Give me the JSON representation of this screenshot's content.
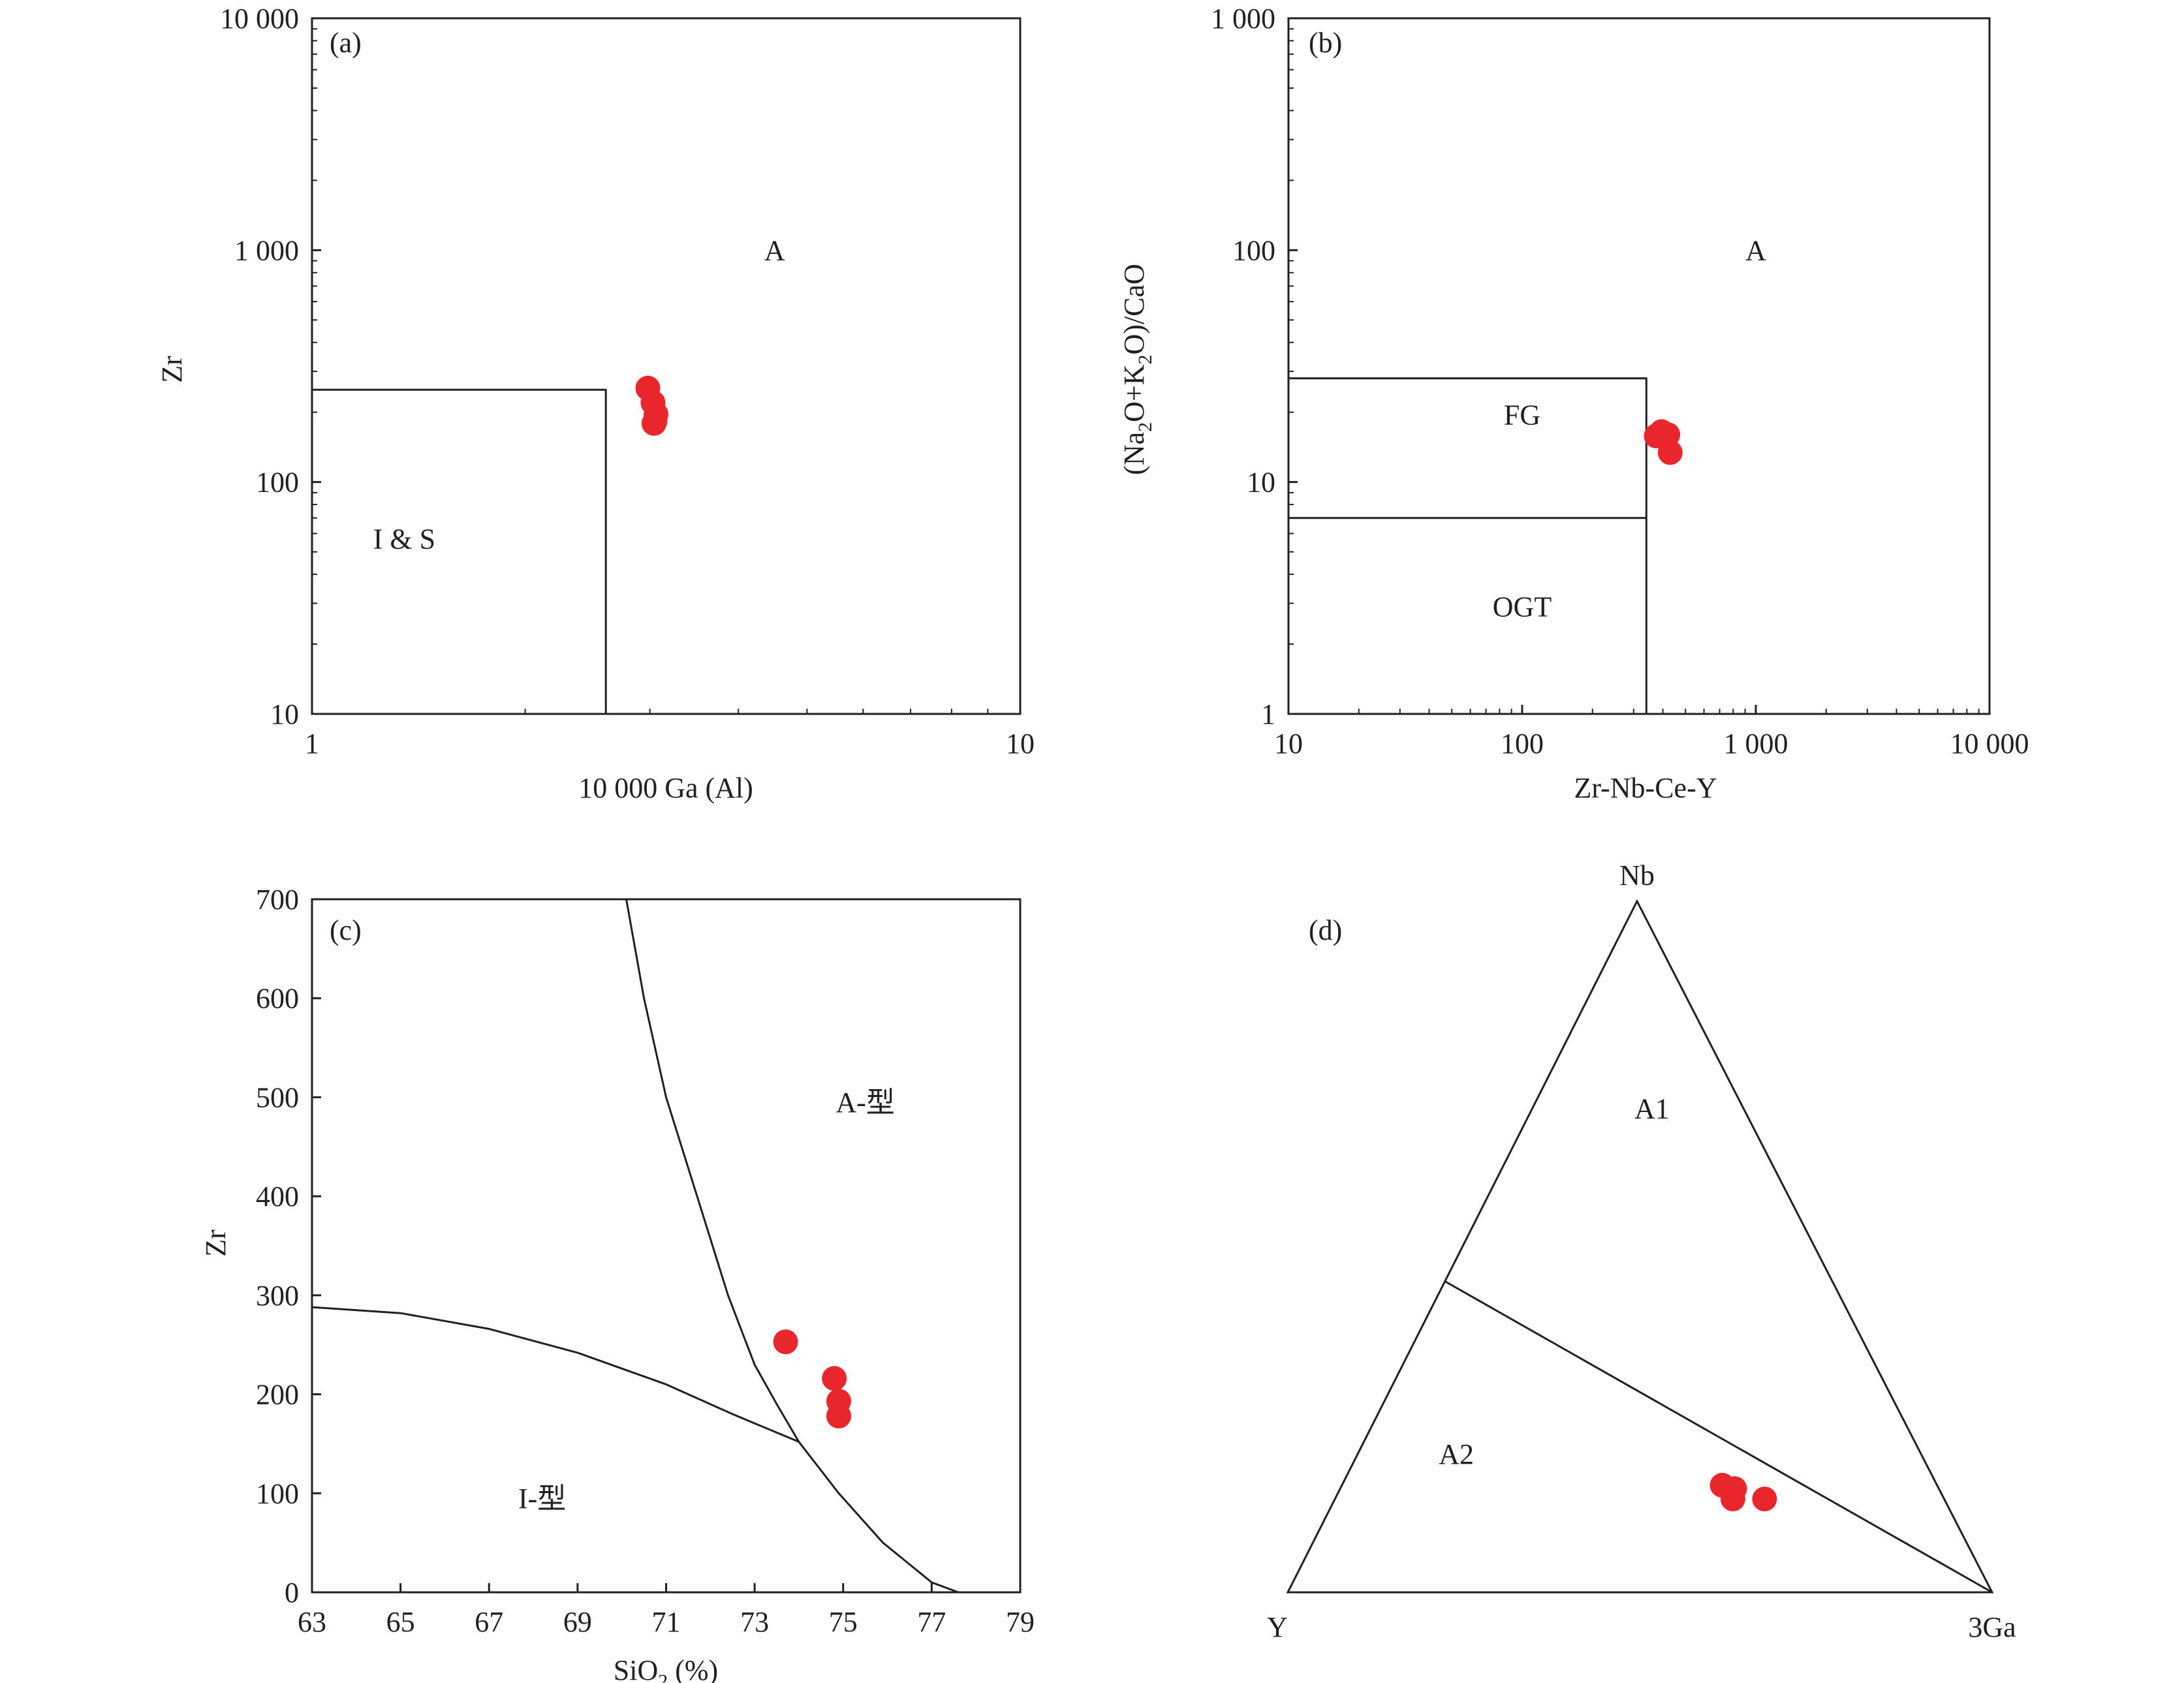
{
  "chart_data": [
    {
      "panel": "a",
      "type": "scatter",
      "panel_label": "(a)",
      "xlabel": "10 000 Ga (Al)",
      "ylabel": "Zr",
      "x_scale": "log",
      "y_scale": "log",
      "xlim": [
        1,
        10
      ],
      "ylim": [
        10,
        10000
      ],
      "x_ticks": [
        {
          "value": 1,
          "label": "1"
        },
        {
          "value": 10,
          "label": "10"
        }
      ],
      "y_ticks": [
        {
          "value": 10,
          "label": "10"
        },
        {
          "value": 100,
          "label": "100"
        },
        {
          "value": 1000,
          "label": "1 000"
        },
        {
          "value": 10000,
          "label": "10 000"
        }
      ],
      "field_labels": [
        {
          "text": "A",
          "x": 4.5,
          "y": 1000
        },
        {
          "text": "I & S",
          "x": 1.35,
          "y": 57
        }
      ],
      "boundaries": [
        [
          [
            1,
            250
          ],
          [
            2.6,
            250
          ],
          [
            2.6,
            10
          ]
        ]
      ],
      "points": [
        {
          "x": 2.98,
          "y": 254
        },
        {
          "x": 3.03,
          "y": 220
        },
        {
          "x": 3.06,
          "y": 196
        },
        {
          "x": 3.05,
          "y": 183
        },
        {
          "x": 3.04,
          "y": 179
        }
      ],
      "marker_color": "#e8262c"
    },
    {
      "panel": "b",
      "type": "scatter",
      "panel_label": "(b)",
      "xlabel": "Zr-Nb-Ce-Y",
      "ylabel_parts": [
        "(Na",
        "2",
        "O+K",
        "2",
        "O)/CaO"
      ],
      "x_scale": "log",
      "y_scale": "log",
      "xlim": [
        10,
        10000
      ],
      "ylim": [
        1,
        1000
      ],
      "x_ticks": [
        {
          "value": 10,
          "label": "10"
        },
        {
          "value": 100,
          "label": "100"
        },
        {
          "value": 1000,
          "label": "1 000"
        },
        {
          "value": 10000,
          "label": "10 000"
        }
      ],
      "y_ticks": [
        {
          "value": 1,
          "label": "1"
        },
        {
          "value": 10,
          "label": "10"
        },
        {
          "value": 100,
          "label": "100"
        },
        {
          "value": 1000,
          "label": "1 000"
        }
      ],
      "field_labels": [
        {
          "text": "A",
          "x": 1000,
          "y": 100
        },
        {
          "text": "FG",
          "x": 100,
          "y": 19.5
        },
        {
          "text": "OGT",
          "x": 100,
          "y": 2.9
        }
      ],
      "boundaries": [
        [
          [
            10,
            28
          ],
          [
            340,
            28
          ],
          [
            340,
            1
          ]
        ],
        [
          [
            10,
            7
          ],
          [
            340,
            7
          ]
        ]
      ],
      "points": [
        {
          "x": 375,
          "y": 15.8
        },
        {
          "x": 395,
          "y": 16.5
        },
        {
          "x": 420,
          "y": 16.0
        },
        {
          "x": 430,
          "y": 13.4
        }
      ],
      "marker_color": "#e8262c"
    },
    {
      "panel": "c",
      "type": "scatter",
      "panel_label": "(c)",
      "xlabel_parts": [
        "SiO",
        "2",
        " (%)"
      ],
      "ylabel": "Zr",
      "xlim": [
        63,
        79
      ],
      "ylim": [
        0,
        700
      ],
      "x_ticks": [
        63,
        65,
        67,
        69,
        71,
        73,
        75,
        77,
        79
      ],
      "y_ticks": [
        0,
        100,
        200,
        300,
        400,
        500,
        600,
        700
      ],
      "field_labels": [
        {
          "text": "A-型",
          "x": 75.5,
          "y": 495
        },
        {
          "text": "I-型",
          "x": 68.2,
          "y": 95
        }
      ],
      "boundaries": [
        [
          [
            70.1,
            700
          ],
          [
            70.5,
            600
          ],
          [
            71.0,
            500
          ],
          [
            71.7,
            400
          ],
          [
            72.4,
            300
          ],
          [
            73.0,
            230
          ],
          [
            73.5,
            190
          ],
          [
            74.0,
            152
          ],
          [
            74.9,
            100
          ],
          [
            75.9,
            50
          ],
          [
            77.0,
            10
          ],
          [
            77.6,
            0
          ]
        ],
        [
          [
            63.0,
            288
          ],
          [
            65.0,
            282
          ],
          [
            67.0,
            266
          ],
          [
            69.0,
            242
          ],
          [
            71.0,
            210
          ],
          [
            72.5,
            180
          ],
          [
            74.0,
            152
          ]
        ]
      ],
      "points": [
        {
          "x": 73.7,
          "y": 253
        },
        {
          "x": 74.8,
          "y": 216
        },
        {
          "x": 74.9,
          "y": 193
        },
        {
          "x": 74.9,
          "y": 178
        }
      ],
      "marker_color": "#e8262c"
    },
    {
      "panel": "d",
      "type": "ternary",
      "panel_label": "(d)",
      "apex_labels": {
        "top": "Nb",
        "left": "Y",
        "right": "3Ga"
      },
      "field_labels": [
        {
          "text": "A1",
          "composition": {
            "Nb": 0.7,
            "Y": 0.13,
            "3Ga": 0.17
          }
        },
        {
          "text": "A2",
          "composition": {
            "Nb": 0.2,
            "Y": 0.66,
            "3Ga": 0.14
          }
        }
      ],
      "divider_line": {
        "from": {
          "Nb": 0.45,
          "Y": 0.55,
          "3Ga": 0.0
        },
        "to": {
          "Nb": 0.0,
          "Y": 0.0,
          "3Ga": 1.0
        }
      },
      "points": [
        {
          "Nb": 0.155,
          "Y": 0.305,
          "3Ga": 0.54
        },
        {
          "Nb": 0.15,
          "Y": 0.29,
          "3Ga": 0.56
        },
        {
          "Nb": 0.135,
          "Y": 0.3,
          "3Ga": 0.565
        },
        {
          "Nb": 0.135,
          "Y": 0.255,
          "3Ga": 0.61
        }
      ],
      "marker_color": "#e8262c"
    }
  ]
}
